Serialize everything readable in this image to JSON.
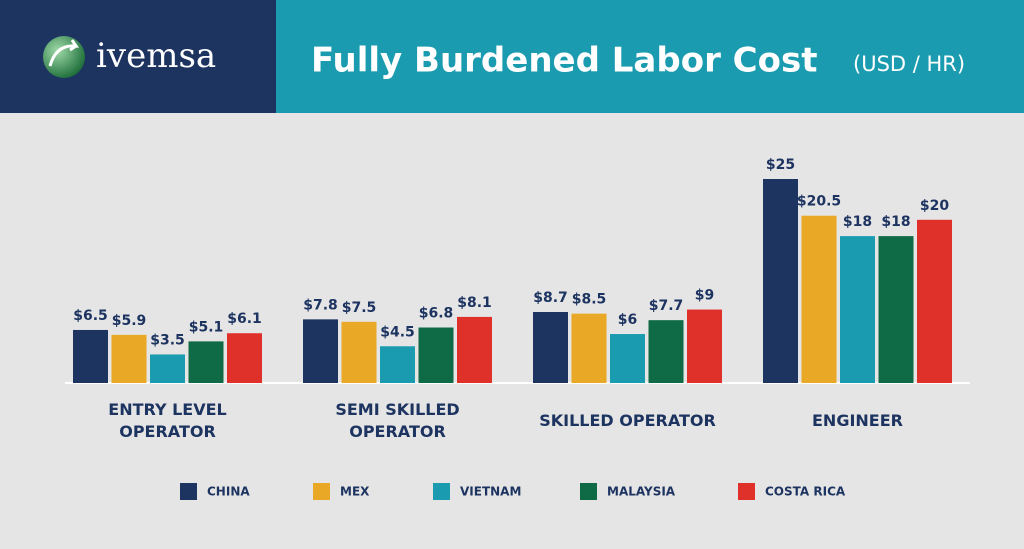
{
  "logo": "ivemsa",
  "chart_data": {
    "type": "bar",
    "title": "Fully Burdened Labor Cost",
    "subtitle": "(USD / HR)",
    "categories": [
      "ENTRY LEVEL OPERATOR",
      "SEMI SKILLED OPERATOR",
      "SKILLED OPERATOR",
      "ENGINEER"
    ],
    "series": [
      {
        "name": "CHINA",
        "color": "#1d3461",
        "values": [
          6.5,
          7.8,
          8.7,
          25
        ],
        "value_labels": [
          "$6.5",
          "$7.8",
          "$8.7",
          "$25"
        ]
      },
      {
        "name": "MEX",
        "color": "#e9a825",
        "values": [
          5.9,
          7.5,
          8.5,
          20.5
        ],
        "value_labels": [
          "$5.9",
          "$7.5",
          "$8.5",
          "$20.5"
        ]
      },
      {
        "name": "VIETNAM",
        "color": "#1a9bb0",
        "values": [
          3.5,
          4.5,
          6,
          18
        ],
        "value_labels": [
          "$3.5",
          "$4.5",
          "$6",
          "$18"
        ]
      },
      {
        "name": "MALAYSIA",
        "color": "#0e6b45",
        "values": [
          5.1,
          6.8,
          7.7,
          18
        ],
        "value_labels": [
          "$5.1",
          "$6.8",
          "$7.7",
          "$18"
        ]
      },
      {
        "name": "COSTA RICA",
        "color": "#e0302a",
        "values": [
          6.1,
          8.1,
          9,
          20
        ],
        "value_labels": [
          "$6.1",
          "$8.1",
          "$9",
          "$20"
        ]
      }
    ],
    "legend": "bottom"
  }
}
